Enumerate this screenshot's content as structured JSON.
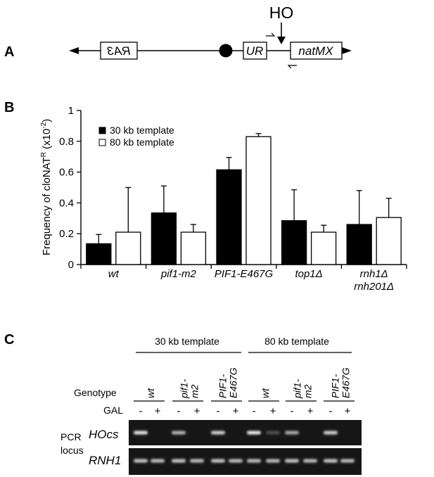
{
  "panel_a": {
    "label": "A",
    "ho_label": "HO",
    "box_ra3": "RA3",
    "box_ur": "UR",
    "box_natmx": "natMX"
  },
  "panel_b": {
    "label": "B",
    "ylabel_main": "Frequency of cloNAT",
    "ylabel_sup": "R",
    "ylabel_units": "(x10",
    "ylabel_units_sup": "-2",
    "ylabel_close": ")",
    "yticks": [
      "0",
      "0.2",
      "0.4",
      "0.6",
      "0.8",
      "1"
    ]
  },
  "chart_data": {
    "type": "bar",
    "categories": [
      "wt",
      "pif1-m2",
      "PIF1-E467G",
      "top1Δ",
      "rnh1Δ rnh201Δ"
    ],
    "category_lines": [
      [
        "wt"
      ],
      [
        "pif1-m2"
      ],
      [
        "PIF1-E467G"
      ],
      [
        "top1Δ"
      ],
      [
        "rnh1Δ",
        "rnh201Δ"
      ]
    ],
    "series": [
      {
        "name": "30 kb template",
        "color": "#000000",
        "values": [
          0.135,
          0.335,
          0.615,
          0.285,
          0.26
        ],
        "errors": [
          0.06,
          0.175,
          0.08,
          0.2,
          0.22
        ]
      },
      {
        "name": "80 kb template",
        "color": "#ffffff",
        "values": [
          0.21,
          0.21,
          0.83,
          0.21,
          0.305
        ],
        "errors": [
          0.29,
          0.05,
          0.02,
          0.045,
          0.125
        ]
      }
    ],
    "ylim": [
      0,
      1
    ],
    "legend_position": "top-left"
  },
  "panel_c": {
    "label": "C",
    "template_30": "30 kb template",
    "template_80": "80 kb template",
    "genotype_label": "Genotype",
    "gal_label": "GAL",
    "pcr_label_1": "PCR",
    "pcr_label_2": "locus",
    "row_hocs": "HOcs",
    "row_rnh1": "RNH1",
    "genotypes": [
      {
        "lines": [
          "wt"
        ]
      },
      {
        "lines": [
          "pif1-",
          "m2"
        ]
      },
      {
        "lines": [
          "PIF1-",
          "E467G"
        ]
      },
      {
        "lines": [
          "wt"
        ]
      },
      {
        "lines": [
          "pif1-",
          "m2"
        ]
      },
      {
        "lines": [
          "PIF1-",
          "E467G"
        ]
      }
    ],
    "gal_signs": [
      "-",
      "+",
      "-",
      "+",
      "-",
      "+",
      "-",
      "+",
      "-",
      "+",
      "-",
      "+"
    ],
    "hocs_band_intensity": [
      0.9,
      0.0,
      0.65,
      0.0,
      0.8,
      0.0,
      0.95,
      0.1,
      0.6,
      0.0,
      0.8,
      0.0
    ],
    "rnh1_band_intensity": [
      0.75,
      0.7,
      0.75,
      0.7,
      0.75,
      0.7,
      0.7,
      0.7,
      0.75,
      0.7,
      0.75,
      0.7
    ]
  }
}
